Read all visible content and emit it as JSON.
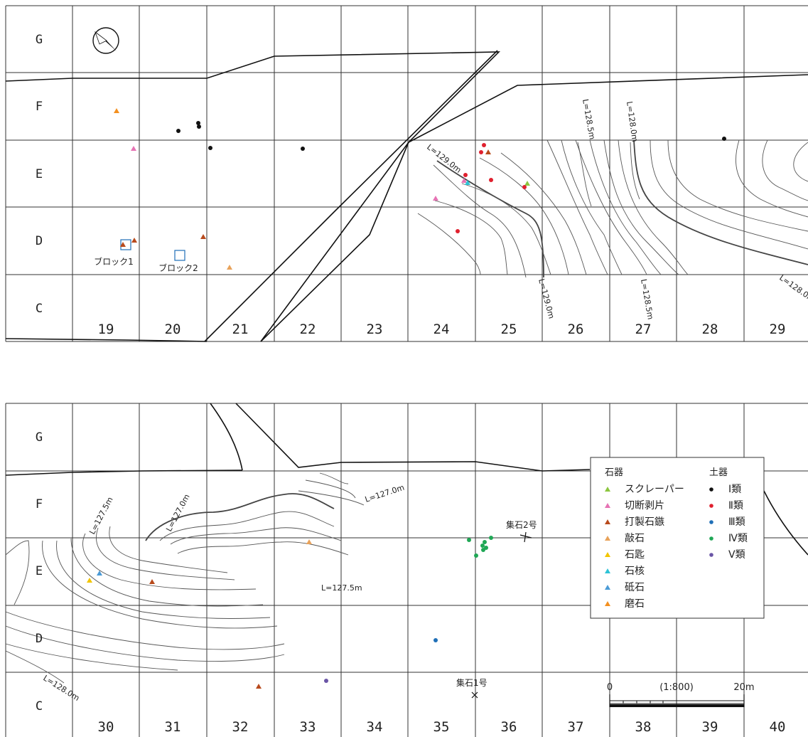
{
  "colors": {
    "scraper": "#8cc63f",
    "cut_flake": "#e673b4",
    "chipped_arrowhead": "#b84a1c",
    "hammerstone": "#e8a25a",
    "stone_spoon": "#f2c500",
    "core": "#2ec3d6",
    "whetstone": "#4b9bd6",
    "grinding_stone": "#f39020",
    "pottery_1": "#111111",
    "pottery_2": "#e0202e",
    "pottery_3": "#1f6fb7",
    "pottery_4": "#1fa755",
    "pottery_5": "#6a55a6",
    "block": "#1f6fb7"
  },
  "icons": {
    "north": "north-arrow-icon"
  },
  "top_map": {
    "rows": [
      "G",
      "F",
      "E",
      "D",
      "C"
    ],
    "cols": [
      "19",
      "20",
      "21",
      "22",
      "23",
      "24",
      "25",
      "26",
      "27",
      "28",
      "29"
    ],
    "block_labels": [
      "ブロック1",
      "ブロック2"
    ],
    "contour_labels": [
      "L=129.0m",
      "L=128.5m",
      "L=128.0m",
      "L=129.0m",
      "L=128.5m",
      "L=128.0m"
    ]
  },
  "bottom_map": {
    "rows": [
      "G",
      "F",
      "E",
      "D",
      "C"
    ],
    "cols": [
      "30",
      "31",
      "32",
      "33",
      "34",
      "35",
      "36",
      "37",
      "38",
      "39",
      "40"
    ],
    "contour_labels": [
      "L=127.5m",
      "L=127.0m",
      "L=127.0m",
      "L=127.5m",
      "L=128.0m"
    ],
    "features": [
      "集石2号",
      "集石1号"
    ]
  },
  "legend": {
    "stone_heading": "石器",
    "pottery_heading": "土器",
    "stone_tools": [
      "スクレーパー",
      "切断剥片",
      "打製石鏃",
      "敲石",
      "石匙",
      "石核",
      "砥石",
      "磨石"
    ],
    "pottery": [
      "Ⅰ類",
      "Ⅱ類",
      "Ⅲ類",
      "Ⅳ類",
      "Ⅴ類"
    ]
  },
  "scale": {
    "start": "0",
    "ratio": "(1:800)",
    "end": "20m"
  }
}
